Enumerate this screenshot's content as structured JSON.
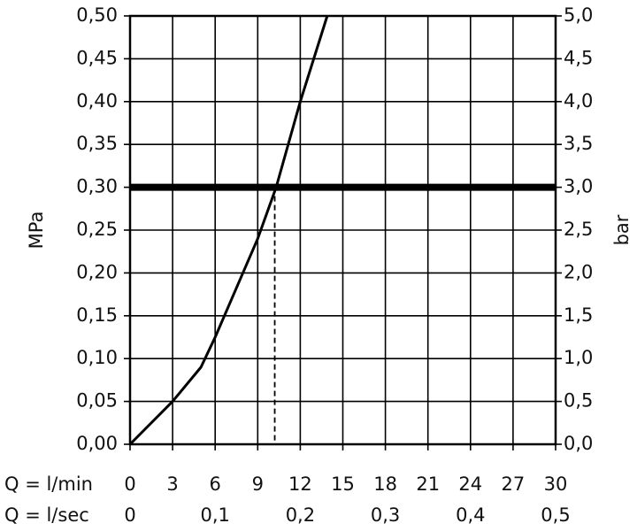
{
  "chart_data": {
    "type": "line",
    "x_label": "Q = l/min",
    "x2_label": "Q = l/sec",
    "y_label": "MPa",
    "y2_label": "bar",
    "x": [
      0,
      3,
      5,
      6,
      9,
      10.3,
      12,
      13.9
    ],
    "values": [
      0,
      0.05,
      0.09,
      0.125,
      0.24,
      0.3,
      0.4,
      0.5
    ],
    "color": "#000000",
    "reference_y": 0.3,
    "reference_x": 10.2,
    "xlim": [
      0,
      30
    ],
    "xticks": [
      0,
      3,
      6,
      9,
      12,
      15,
      18,
      21,
      24,
      27,
      30
    ],
    "x2lim": [
      0,
      0.5
    ],
    "x2ticks": [
      0,
      {
        "value": 0.1,
        "label": "0,1"
      },
      {
        "value": 0.2,
        "label": "0,2"
      },
      {
        "value": 0.3,
        "label": "0,3"
      },
      {
        "value": 0.4,
        "label": "0,4"
      },
      {
        "value": 0.5,
        "label": "0,5"
      }
    ],
    "ylim": [
      0,
      0.5
    ],
    "yticks": [
      {
        "value": 0,
        "label": "0,00"
      },
      {
        "value": 0.05,
        "label": "0,05"
      },
      {
        "value": 0.1,
        "label": "0,10"
      },
      {
        "value": 0.15,
        "label": "0,15"
      },
      {
        "value": 0.2,
        "label": "0,20"
      },
      {
        "value": 0.25,
        "label": "0,25"
      },
      {
        "value": 0.3,
        "label": "0,30"
      },
      {
        "value": 0.35,
        "label": "0,35"
      },
      {
        "value": 0.4,
        "label": "0,40"
      },
      {
        "value": 0.45,
        "label": "0,45"
      },
      {
        "value": 0.5,
        "label": "0,50"
      }
    ],
    "y2lim": [
      0,
      5
    ],
    "y2ticks": [
      {
        "value": 0,
        "label": "0,0"
      },
      {
        "value": 0.5,
        "label": "0,5"
      },
      {
        "value": 1,
        "label": "1,0"
      },
      {
        "value": 1.5,
        "label": "1,5"
      },
      {
        "value": 2,
        "label": "2,0"
      },
      {
        "value": 2.5,
        "label": "2,5"
      },
      {
        "value": 3,
        "label": "3,0"
      },
      {
        "value": 3.5,
        "label": "3,5"
      },
      {
        "value": 4,
        "label": "4,0"
      },
      {
        "value": 4.5,
        "label": "4,5"
      },
      {
        "value": 5,
        "label": "5,0"
      }
    ],
    "grid": true
  }
}
